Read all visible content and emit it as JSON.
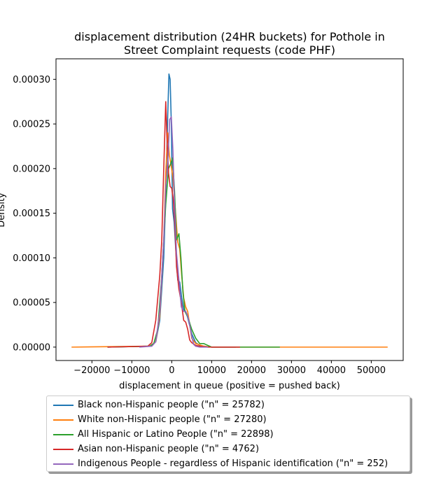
{
  "chart_data": {
    "type": "line",
    "title_line1": "displacement distribution (24HR buckets) for Pothole in",
    "title_line2": "Street Complaint requests (code PHF)",
    "xlabel": "displacement in queue (positive = pushed back)",
    "ylabel": "Density",
    "xlim": [
      -29000,
      58000
    ],
    "ylim": [
      -1.5e-05,
      0.000323
    ],
    "xticks": [
      -20000,
      -10000,
      0,
      10000,
      20000,
      30000,
      40000,
      50000
    ],
    "xtick_labels": [
      "−20000",
      "−10000",
      "0",
      "10000",
      "20000",
      "30000",
      "40000",
      "50000"
    ],
    "yticks": [
      0,
      5e-05,
      0.0001,
      0.00015,
      0.0002,
      0.00025,
      0.0003
    ],
    "ytick_labels": [
      "0.00000",
      "0.00005",
      "0.00010",
      "0.00015",
      "0.00020",
      "0.00025",
      "0.00030"
    ],
    "legend_position": "below the plot",
    "series": [
      {
        "name": "Black non-Hispanic people (\"n\" = 25782)",
        "color": "#1f77b4",
        "x": [
          -16000,
          -5500,
          -4000,
          -3000,
          -2000,
          -1500,
          -1000,
          -700,
          -400,
          -100,
          200,
          600,
          1000,
          1500,
          2000,
          2500,
          3000,
          3500,
          4000,
          5000,
          6000,
          7000,
          8000,
          10000,
          16000
        ],
        "y": [
          0,
          1e-06,
          6e-06,
          3e-05,
          0.0001,
          0.00017,
          0.00026,
          0.000306,
          0.0003,
          0.00025,
          0.000155,
          0.00014,
          0.00011,
          7.5e-05,
          7.3e-05,
          5.5e-05,
          4.2e-05,
          4e-05,
          3.3e-05,
          1.5e-05,
          5e-06,
          2e-06,
          1e-06,
          0,
          0
        ]
      },
      {
        "name": "White non-Hispanic people (\"n\" = 27280)",
        "color": "#ff7f0e",
        "x": [
          -25000,
          -5500,
          -4000,
          -3000,
          -2000,
          -1500,
          -1000,
          -600,
          -200,
          300,
          800,
          1500,
          2000,
          2500,
          3000,
          3500,
          4000,
          5000,
          6000,
          8000,
          10000,
          54000
        ],
        "y": [
          0,
          1e-06,
          6e-06,
          3.5e-05,
          0.00012,
          0.000195,
          0.00024,
          0.000215,
          0.000205,
          0.00019,
          0.00016,
          0.000118,
          0.00011,
          8e-05,
          5.5e-05,
          4.5e-05,
          4e-05,
          1e-05,
          4e-06,
          1e-06,
          0,
          0
        ]
      },
      {
        "name": "All Hispanic or Latino People (\"n\" = 22898)",
        "color": "#2ca02c",
        "x": [
          -16000,
          -5500,
          -4500,
          -3500,
          -2500,
          -1500,
          -800,
          -300,
          200,
          700,
          1200,
          1800,
          2300,
          2800,
          3300,
          4000,
          5000,
          6000,
          7000,
          8000,
          9000,
          10000,
          27000
        ],
        "y": [
          0,
          1e-06,
          4e-06,
          2e-05,
          8e-05,
          0.00016,
          0.0002,
          0.000205,
          0.000212,
          0.000175,
          0.00012,
          0.000127,
          0.0001,
          6.2e-05,
          4e-05,
          3.4e-05,
          2e-05,
          1e-05,
          4e-06,
          4e-06,
          2e-06,
          0,
          0
        ]
      },
      {
        "name": "Asian non-Hispanic people (\"n\" = 4762)",
        "color": "#d62728",
        "x": [
          -16000,
          -6000,
          -5000,
          -4000,
          -3000,
          -2500,
          -2000,
          -1500,
          -1200,
          -800,
          -400,
          0,
          400,
          800,
          1200,
          1800,
          2400,
          3000,
          3500,
          4000,
          4500,
          5000,
          6000,
          7000,
          9000,
          17000
        ],
        "y": [
          0,
          1e-06,
          5e-06,
          3e-05,
          8e-05,
          0.00012,
          0.0002,
          0.000275,
          0.000235,
          0.000195,
          0.00018,
          0.000178,
          0.000165,
          0.000135,
          9e-05,
          6.5e-05,
          5e-05,
          3e-05,
          2.8e-05,
          2e-05,
          8e-06,
          5e-06,
          2e-06,
          1e-06,
          0,
          0
        ]
      },
      {
        "name": "Indigenous People - regardless of Hispanic identification (\"n\" = 252)",
        "color": "#9467bd",
        "x": [
          -8000,
          -5000,
          -4000,
          -3000,
          -2000,
          -1500,
          -1000,
          -500,
          -100,
          300,
          700,
          1200,
          1800,
          2400,
          3000,
          3500,
          4000,
          4500,
          5000,
          5500,
          6000,
          7000,
          9000
        ],
        "y": [
          0,
          1e-06,
          6e-06,
          4e-05,
          0.00012,
          0.00018,
          0.000205,
          0.000255,
          0.000258,
          0.00022,
          0.00016,
          0.000105,
          7.5e-05,
          4.5e-05,
          4e-05,
          4e-05,
          3.5e-05,
          2.5e-05,
          1.2e-05,
          3e-06,
          1e-06,
          0,
          0
        ]
      }
    ]
  }
}
